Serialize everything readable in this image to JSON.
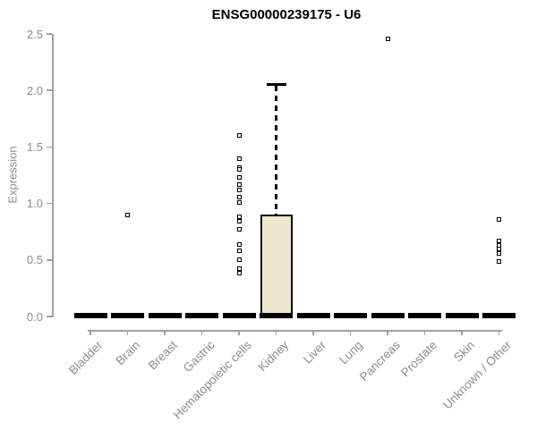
{
  "chart_data": {
    "type": "boxplot",
    "title": "ENSG00000239175 - U6",
    "ylabel": "Expression",
    "xlabel": "",
    "ylim": [
      0,
      2.5
    ],
    "grid": false,
    "legend": "none",
    "ytick_values": [
      0,
      0.5,
      1,
      1.5,
      2,
      2.5
    ],
    "ytick_labels": [
      "0.0",
      "0.5",
      "1.0",
      "1.5",
      "2.0",
      "2.5"
    ],
    "categories": [
      "Bladder",
      "Brain",
      "Breast",
      "Gastric",
      "Hematopoietic cells",
      "Kidney",
      "Liver",
      "Lung",
      "Pancreas",
      "Prostate",
      "Skin",
      "Unknown / Other"
    ],
    "boxes": [
      {
        "category": "Bladder",
        "q1": 0,
        "median": 0.01,
        "q3": 0.02,
        "whisker_low": 0,
        "whisker_high": 0.02,
        "outliers": []
      },
      {
        "category": "Brain",
        "q1": 0,
        "median": 0.01,
        "q3": 0.02,
        "whisker_low": 0,
        "whisker_high": 0.02,
        "outliers": [
          0.9
        ]
      },
      {
        "category": "Breast",
        "q1": 0,
        "median": 0.01,
        "q3": 0.02,
        "whisker_low": 0,
        "whisker_high": 0.02,
        "outliers": []
      },
      {
        "category": "Gastric",
        "q1": 0,
        "median": 0.01,
        "q3": 0.02,
        "whisker_low": 0,
        "whisker_high": 0.02,
        "outliers": []
      },
      {
        "category": "Hematopoietic cells",
        "q1": 0,
        "median": 0.01,
        "q3": 0.02,
        "whisker_low": 0,
        "whisker_high": 0.02,
        "outliers": [
          1.6,
          1.4,
          1.32,
          1.3,
          1.23,
          1.17,
          1.12,
          1.06,
          1.01,
          0.88,
          0.84,
          0.77,
          0.64,
          0.58,
          0.5,
          0.42,
          0.38
        ]
      },
      {
        "category": "Kidney",
        "q1": 0.01,
        "median": 0.01,
        "q3": 0.9,
        "whisker_low": 0,
        "whisker_high": 2.06,
        "outliers": []
      },
      {
        "category": "Liver",
        "q1": 0,
        "median": 0.01,
        "q3": 0.02,
        "whisker_low": 0,
        "whisker_high": 0.02,
        "outliers": []
      },
      {
        "category": "Lung",
        "q1": 0,
        "median": 0.01,
        "q3": 0.02,
        "whisker_low": 0,
        "whisker_high": 0.02,
        "outliers": []
      },
      {
        "category": "Pancreas",
        "q1": 0,
        "median": 0.01,
        "q3": 0.02,
        "whisker_low": 0,
        "whisker_high": 0.02,
        "outliers": [
          2.46
        ]
      },
      {
        "category": "Prostate",
        "q1": 0,
        "median": 0.01,
        "q3": 0.02,
        "whisker_low": 0,
        "whisker_high": 0.02,
        "outliers": []
      },
      {
        "category": "Skin",
        "q1": 0,
        "median": 0.01,
        "q3": 0.02,
        "whisker_low": 0,
        "whisker_high": 0.02,
        "outliers": []
      },
      {
        "category": "Unknown / Other",
        "q1": 0,
        "median": 0.01,
        "q3": 0.02,
        "whisker_low": 0,
        "whisker_high": 0.02,
        "outliers": [
          0.86,
          0.67,
          0.63,
          0.6,
          0.56,
          0.49
        ]
      }
    ],
    "colors": {
      "box_fill": "#ede8cd",
      "box_border": "#000000",
      "median": "#000000",
      "outlier_border": "#000000",
      "axis": "#a0a0a0",
      "tick_text": "#8c8c8c",
      "title_text": "#000000",
      "background": "#ffffff"
    }
  }
}
